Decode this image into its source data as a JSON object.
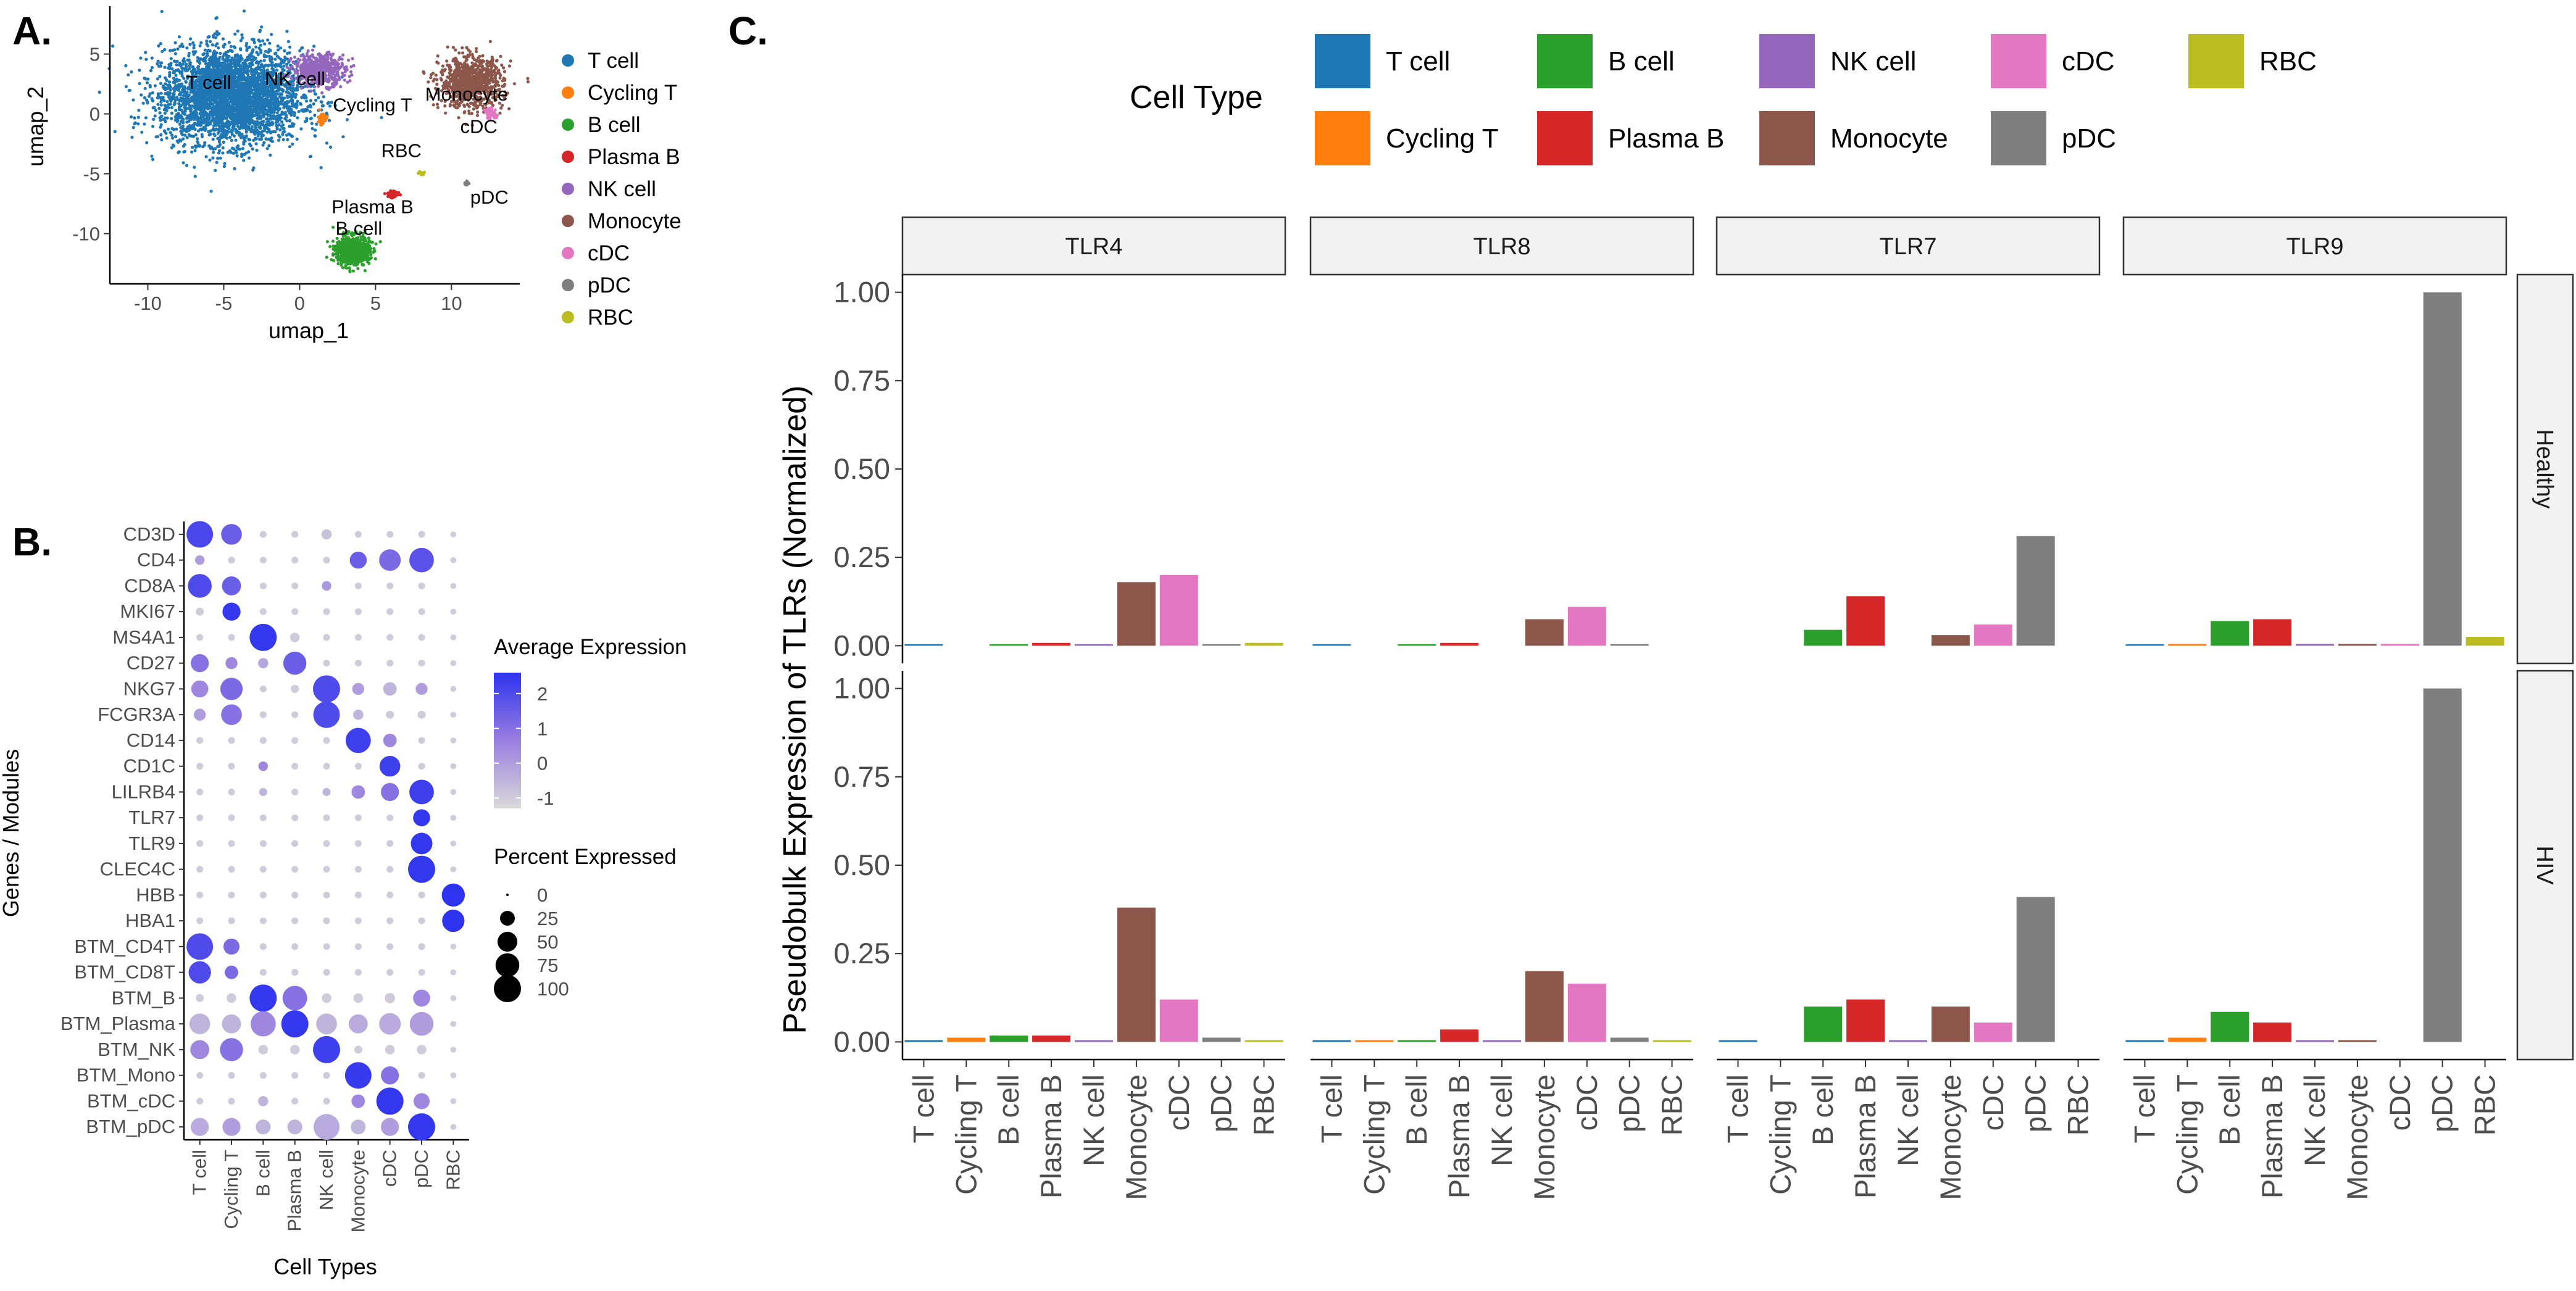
{
  "panel_labels": {
    "a": "A.",
    "b": "B.",
    "c": "C."
  },
  "colors": {
    "T cell": "#1f77b4",
    "Cycling T": "#ff7f0e",
    "B cell": "#2ca02c",
    "Plasma B": "#d62728",
    "NK cell": "#9467bd",
    "Monocyte": "#8c564b",
    "cDC": "#e377c2",
    "pDC": "#7f7f7f",
    "RBC": "#bcbd22"
  },
  "chart_data": [
    {
      "type": "scatter",
      "title": "",
      "xlabel": "umap_1",
      "ylabel": "umap_2",
      "xlim": [
        -12.5,
        14.5
      ],
      "ylim": [
        -14.2,
        9
      ],
      "xticks": [
        "-10",
        "-5",
        "0",
        "5",
        "10"
      ],
      "xtick_values": [
        -10,
        -5,
        0,
        5,
        10
      ],
      "yticks": [
        "5",
        "0",
        "-5",
        "-10"
      ],
      "ytick_values": [
        5,
        0,
        -5,
        -10
      ],
      "legend": [
        "T cell",
        "Cycling T",
        "B cell",
        "Plasma B",
        "NK cell",
        "Monocyte",
        "cDC",
        "pDC",
        "RBC"
      ],
      "cluster_labels": [
        {
          "text": "T cell",
          "x": -6,
          "y": 2.1
        },
        {
          "text": "NK cell",
          "x": -0.3,
          "y": 2.4
        },
        {
          "text": "Cycling T",
          "x": 4.8,
          "y": 0.2
        },
        {
          "text": "Monocyte",
          "x": 11,
          "y": 1.1
        },
        {
          "text": "cDC",
          "x": 11.8,
          "y": -1.6
        },
        {
          "text": "RBC",
          "x": 6.7,
          "y": -3.6
        },
        {
          "text": "Plasma B",
          "x": 4.8,
          "y": -8.3
        },
        {
          "text": "pDC",
          "x": 12.5,
          "y": -7.5
        },
        {
          "text": "B cell",
          "x": 3.9,
          "y": -10.1
        }
      ],
      "clusters": [
        {
          "name": "T cell",
          "cx": -4.5,
          "cy": 1.5,
          "sx": 4.2,
          "sy": 3.6,
          "n": 3500
        },
        {
          "name": "NK cell",
          "cx": 1.3,
          "cy": 3.7,
          "sx": 1.6,
          "sy": 1.2,
          "n": 500
        },
        {
          "name": "Cycling T",
          "cx": 1.5,
          "cy": -0.4,
          "sx": 0.25,
          "sy": 0.45,
          "n": 60
        },
        {
          "name": "Monocyte",
          "cx": 11.3,
          "cy": 2.6,
          "sx": 1.9,
          "sy": 1.9,
          "n": 900
        },
        {
          "name": "cDC",
          "cx": 12.6,
          "cy": 0,
          "sx": 0.35,
          "sy": 0.4,
          "n": 60
        },
        {
          "name": "RBC",
          "cx": 8.0,
          "cy": -4.9,
          "sx": 0.2,
          "sy": 0.15,
          "n": 10
        },
        {
          "name": "Plasma B",
          "cx": 6.2,
          "cy": -6.7,
          "sx": 0.35,
          "sy": 0.3,
          "n": 40
        },
        {
          "name": "pDC",
          "cx": 11.0,
          "cy": -5.8,
          "sx": 0.15,
          "sy": 0.2,
          "n": 15
        },
        {
          "name": "B cell",
          "cx": 3.5,
          "cy": -11.4,
          "sx": 1.0,
          "sy": 1.1,
          "n": 700
        }
      ]
    },
    {
      "type": "dotplot",
      "xlabel": "Cell Types",
      "ylabel": "Genes / Modules",
      "categories": [
        "T cell",
        "Cycling T",
        "B cell",
        "Plasma B",
        "NK cell",
        "Monocyte",
        "cDC",
        "pDC",
        "RBC"
      ],
      "genes": [
        "CD3D",
        "CD4",
        "CD8A",
        "MKI67",
        "MS4A1",
        "CD27",
        "NKG7",
        "FCGR3A",
        "CD14",
        "CD1C",
        "LILRB4",
        "TLR7",
        "TLR9",
        "CLEC4C",
        "HBB",
        "HBA1",
        "BTM_CD4T",
        "BTM_CD8T",
        "BTM_B",
        "BTM_Plasma",
        "BTM_NK",
        "BTM_Mono",
        "BTM_cDC",
        "BTM_pDC"
      ],
      "avg_expression": [
        [
          2.1,
          1.5,
          -1,
          -1,
          -0.8,
          -1,
          -1,
          -1,
          -1
        ],
        [
          0,
          -1,
          -1,
          -1,
          -1,
          1.5,
          1.2,
          1.8,
          -1
        ],
        [
          2.0,
          1.5,
          -1,
          -1,
          0.1,
          -1,
          -1,
          -1,
          -1
        ],
        [
          -1,
          2.5,
          -1,
          -1,
          -1,
          -1,
          -1,
          -1,
          -1
        ],
        [
          -1,
          -1,
          2.5,
          -1,
          -1,
          -1,
          -1,
          -1,
          -1
        ],
        [
          1.0,
          0.5,
          -0.2,
          1.5,
          -1,
          -1,
          -1,
          -1,
          -1
        ],
        [
          0.5,
          1.2,
          -1,
          -1,
          2.0,
          0,
          -0.5,
          0,
          -1
        ],
        [
          0,
          1.0,
          -1,
          -1,
          2.0,
          -0.5,
          -1,
          -1,
          -1
        ],
        [
          -1,
          -1,
          -1,
          -1,
          -1,
          2.3,
          0.5,
          -1,
          -1
        ],
        [
          -1,
          -1,
          0.5,
          -1,
          -1,
          -1,
          2.3,
          -1,
          -1
        ],
        [
          -1,
          -1,
          -0.5,
          -1,
          -0.5,
          0.5,
          1.0,
          2.3,
          -1
        ],
        [
          -1,
          -1,
          -1,
          -1,
          -1,
          -1,
          -1,
          2.5,
          -1
        ],
        [
          -1,
          -1,
          -1,
          -1,
          -1,
          -1,
          -1,
          2.5,
          -1
        ],
        [
          -1,
          -1,
          -1,
          -1,
          -1,
          -1,
          -1,
          2.5,
          -1
        ],
        [
          -1,
          -1,
          -1,
          -1,
          -1,
          -1,
          -1,
          -1,
          2.6
        ],
        [
          -1,
          -1,
          -1,
          -1,
          -1,
          -1,
          -1,
          -1,
          2.6
        ],
        [
          2.0,
          1.2,
          -1,
          -1,
          -1,
          -1,
          -1,
          -1,
          -1
        ],
        [
          2.0,
          1.2,
          -1,
          -1,
          -1,
          -1,
          -1,
          -1,
          -1
        ],
        [
          -1,
          -1,
          2.5,
          1.0,
          -1,
          -1,
          -1,
          0.5,
          -1
        ],
        [
          -0.5,
          -0.5,
          0.5,
          2.5,
          -0.5,
          -0.3,
          -0.3,
          0,
          -1
        ],
        [
          0.5,
          1.0,
          -1,
          -1,
          2.3,
          -1,
          -1,
          -1,
          -1
        ],
        [
          -1,
          -1,
          -1,
          -1,
          -1,
          2.4,
          1.0,
          -1,
          -1
        ],
        [
          -1,
          -1,
          -0.5,
          -1,
          -1,
          0.5,
          2.5,
          0.5,
          -1
        ],
        [
          -0.3,
          0,
          -0.5,
          -0.5,
          -0.3,
          -0.5,
          0,
          2.5,
          -1
        ]
      ],
      "pct_expressed": [
        [
          95,
          55,
          3,
          3,
          10,
          3,
          3,
          3,
          2
        ],
        [
          8,
          3,
          3,
          3,
          3,
          35,
          60,
          80,
          2
        ],
        [
          75,
          45,
          3,
          3,
          8,
          3,
          3,
          3,
          2
        ],
        [
          5,
          40,
          3,
          3,
          3,
          3,
          3,
          3,
          2
        ],
        [
          3,
          3,
          100,
          8,
          3,
          3,
          3,
          3,
          2
        ],
        [
          40,
          15,
          10,
          70,
          3,
          3,
          3,
          3,
          2
        ],
        [
          35,
          65,
          3,
          5,
          100,
          15,
          20,
          15,
          2
        ],
        [
          15,
          55,
          3,
          3,
          95,
          10,
          5,
          5,
          2
        ],
        [
          3,
          3,
          3,
          3,
          3,
          85,
          20,
          3,
          2
        ],
        [
          3,
          3,
          8,
          3,
          3,
          3,
          55,
          3,
          2
        ],
        [
          3,
          3,
          5,
          3,
          5,
          20,
          40,
          80,
          2
        ],
        [
          3,
          3,
          3,
          3,
          3,
          3,
          3,
          35,
          2
        ],
        [
          3,
          3,
          3,
          3,
          3,
          3,
          3,
          60,
          2
        ],
        [
          3,
          3,
          3,
          3,
          3,
          3,
          3,
          100,
          2
        ],
        [
          3,
          3,
          3,
          3,
          3,
          3,
          3,
          3,
          70
        ],
        [
          3,
          3,
          3,
          3,
          3,
          3,
          3,
          3,
          65
        ],
        [
          95,
          30,
          3,
          3,
          3,
          3,
          3,
          3,
          2
        ],
        [
          65,
          20,
          3,
          3,
          3,
          3,
          3,
          3,
          2
        ],
        [
          5,
          8,
          100,
          80,
          8,
          8,
          10,
          35,
          2
        ],
        [
          55,
          45,
          85,
          100,
          55,
          45,
          60,
          75,
          2
        ],
        [
          45,
          70,
          8,
          8,
          100,
          5,
          8,
          8,
          2
        ],
        [
          3,
          3,
          3,
          3,
          3,
          95,
          40,
          3,
          2
        ],
        [
          3,
          3,
          10,
          3,
          3,
          20,
          100,
          30,
          2
        ],
        [
          40,
          40,
          25,
          25,
          90,
          25,
          40,
          100,
          2
        ]
      ],
      "legend": {
        "color_title": "Average Expression",
        "color_ticks": [
          "2",
          "1",
          "0",
          "-1"
        ],
        "color_tick_values": [
          2,
          1,
          0,
          -1
        ],
        "color_range": [
          -1.3,
          2.6
        ],
        "size_title": "Percent Expressed",
        "size_ticks": [
          "0",
          "25",
          "50",
          "75",
          "100"
        ],
        "size_tick_values": [
          0,
          25,
          50,
          75,
          100
        ]
      }
    },
    {
      "type": "bar",
      "legend_title": "Cell Type",
      "legend": [
        "T cell",
        "B cell",
        "NK cell",
        "cDC",
        "RBC",
        "Cycling T",
        "Plasma B",
        "Monocyte",
        "pDC"
      ],
      "ylabel": "Pseudobulk Expression of TLRs (Normalized)",
      "ylim": [
        -0.05,
        1.05
      ],
      "yticks": [
        "1.00",
        "0.75",
        "0.50",
        "0.25",
        "0.00"
      ],
      "ytick_values": [
        1.0,
        0.75,
        0.5,
        0.25,
        0.0
      ],
      "categories": [
        "T cell",
        "Cycling T",
        "B cell",
        "Plasma B",
        "NK cell",
        "Monocyte",
        "cDC",
        "pDC",
        "RBC"
      ],
      "facet_cols": [
        "TLR4",
        "TLR8",
        "TLR7",
        "TLR9"
      ],
      "facet_rows": [
        "Healthy",
        "HIV"
      ],
      "values": {
        "Healthy": {
          "TLR4": [
            0.003,
            0,
            0.004,
            0.008,
            0.004,
            0.18,
            0.2,
            0.004,
            0.008
          ],
          "TLR8": [
            0.003,
            0,
            0.004,
            0.008,
            0,
            0.075,
            0.11,
            0.004,
            0
          ],
          "TLR7": [
            0,
            0,
            0.045,
            0.14,
            0,
            0.03,
            0.06,
            0.31,
            0
          ],
          "TLR9": [
            0.004,
            0.005,
            0.07,
            0.075,
            0.005,
            0.005,
            0.005,
            1.0,
            0.025
          ]
        },
        "HIV": {
          "TLR4": [
            0.005,
            0.012,
            0.018,
            0.018,
            0.005,
            0.38,
            0.12,
            0.012,
            0.005
          ],
          "TLR8": [
            0.005,
            0.005,
            0.005,
            0.035,
            0.005,
            0.2,
            0.165,
            0.012,
            0.005
          ],
          "TLR7": [
            0.005,
            0,
            0.1,
            0.12,
            0.005,
            0.1,
            0.055,
            0.41,
            0
          ],
          "TLR9": [
            0.005,
            0.012,
            0.085,
            0.055,
            0.005,
            0.005,
            0,
            1.0,
            0
          ]
        }
      }
    }
  ]
}
